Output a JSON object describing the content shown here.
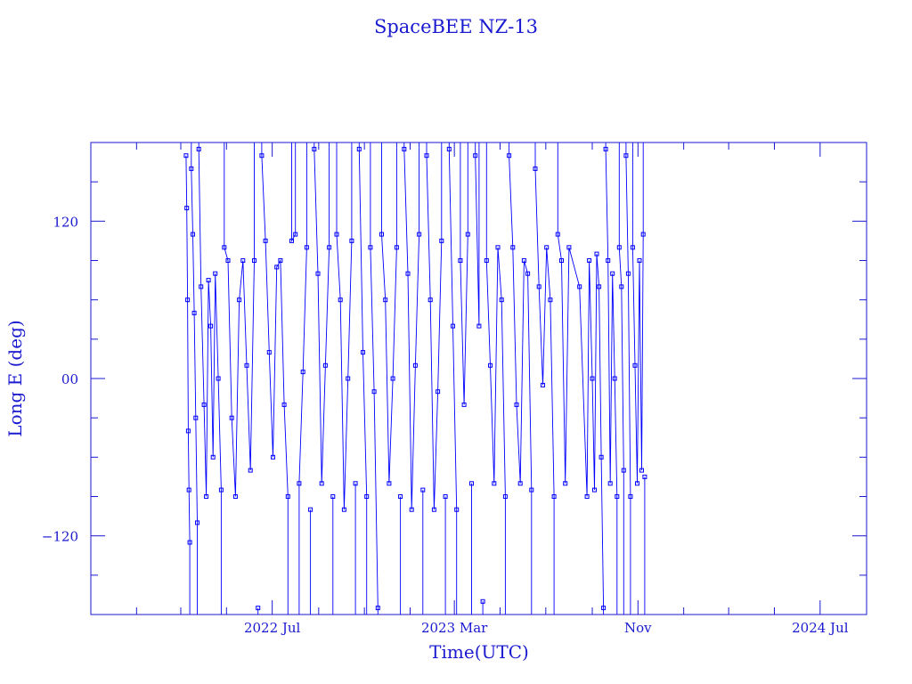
{
  "chart_data": {
    "type": "line",
    "title": "SpaceBEE NZ-13",
    "xlabel": "Time(UTC)",
    "ylabel": "Long E (deg)",
    "x_range": [
      "2021-11-01",
      "2024-09-01"
    ],
    "ylim": [
      -180,
      180
    ],
    "y_ticks": [
      -120,
      0,
      120
    ],
    "y_tick_labels": [
      "−120",
      "00",
      "120"
    ],
    "x_tick_labels": [
      {
        "date": "2022-07-01",
        "label": "2022 Jul"
      },
      {
        "date": "2023-03-01",
        "label": "2023 Mar"
      },
      {
        "date": "2023-11-01",
        "label": "Nov"
      },
      {
        "date": "2024-07-01",
        "label": "2024 Jul"
      }
    ],
    "grid": false,
    "series_color": "#0000ff",
    "axis_color": "#1a1ad0",
    "series": [
      {
        "data_start": "2022-03-08",
        "data_end": "2023-11-10",
        "points": [
          [
            "2022-03-08",
            170
          ],
          [
            "2022-03-09",
            130
          ],
          [
            "2022-03-10",
            60
          ],
          [
            "2022-03-11",
            -40
          ],
          [
            "2022-03-12",
            -85
          ],
          [
            "2022-03-13",
            -125
          ],
          [
            "2022-03-15",
            160
          ],
          [
            "2022-03-17",
            110
          ],
          [
            "2022-03-19",
            50
          ],
          [
            "2022-03-21",
            -30
          ],
          [
            "2022-03-23",
            -110
          ],
          [
            "2022-03-25",
            175
          ],
          [
            "2022-03-28",
            70
          ],
          [
            "2022-04-01",
            -20
          ],
          [
            "2022-04-04",
            -90
          ],
          [
            "2022-04-07",
            75
          ],
          [
            "2022-04-10",
            40
          ],
          [
            "2022-04-13",
            -60
          ],
          [
            "2022-04-16",
            80
          ],
          [
            "2022-04-20",
            0
          ],
          [
            "2022-04-24",
            -85
          ],
          [
            "2022-04-28",
            100
          ],
          [
            "2022-05-03",
            90
          ],
          [
            "2022-05-08",
            -30
          ],
          [
            "2022-05-13",
            -90
          ],
          [
            "2022-05-18",
            60
          ],
          [
            "2022-05-23",
            90
          ],
          [
            "2022-05-28",
            10
          ],
          [
            "2022-06-02",
            -70
          ],
          [
            "2022-06-07",
            90
          ],
          [
            "2022-06-12",
            -175
          ],
          [
            "2022-06-17",
            170
          ],
          [
            "2022-06-22",
            105
          ],
          [
            "2022-06-27",
            20
          ],
          [
            "2022-07-02",
            -60
          ],
          [
            "2022-07-07",
            85
          ],
          [
            "2022-07-12",
            90
          ],
          [
            "2022-07-17",
            -20
          ],
          [
            "2022-07-22",
            -90
          ],
          [
            "2022-07-27",
            105
          ],
          [
            "2022-08-01",
            110
          ],
          [
            "2022-08-06",
            -80
          ],
          [
            "2022-08-11",
            5
          ],
          [
            "2022-08-16",
            100
          ],
          [
            "2022-08-21",
            -100
          ],
          [
            "2022-08-26",
            175
          ],
          [
            "2022-08-31",
            80
          ],
          [
            "2022-09-05",
            -80
          ],
          [
            "2022-09-10",
            10
          ],
          [
            "2022-09-15",
            100
          ],
          [
            "2022-09-20",
            -90
          ],
          [
            "2022-09-25",
            110
          ],
          [
            "2022-09-30",
            60
          ],
          [
            "2022-10-05",
            -100
          ],
          [
            "2022-10-10",
            0
          ],
          [
            "2022-10-15",
            105
          ],
          [
            "2022-10-20",
            -80
          ],
          [
            "2022-10-25",
            175
          ],
          [
            "2022-10-30",
            20
          ],
          [
            "2022-11-04",
            -90
          ],
          [
            "2022-11-09",
            100
          ],
          [
            "2022-11-14",
            -10
          ],
          [
            "2022-11-19",
            -175
          ],
          [
            "2022-11-24",
            110
          ],
          [
            "2022-11-29",
            60
          ],
          [
            "2022-12-04",
            -80
          ],
          [
            "2022-12-09",
            0
          ],
          [
            "2022-12-14",
            100
          ],
          [
            "2022-12-19",
            -90
          ],
          [
            "2022-12-24",
            175
          ],
          [
            "2022-12-29",
            80
          ],
          [
            "2023-01-03",
            -100
          ],
          [
            "2023-01-08",
            10
          ],
          [
            "2023-01-13",
            110
          ],
          [
            "2023-01-18",
            -85
          ],
          [
            "2023-01-23",
            170
          ],
          [
            "2023-01-28",
            60
          ],
          [
            "2023-02-02",
            -100
          ],
          [
            "2023-02-07",
            -10
          ],
          [
            "2023-02-12",
            105
          ],
          [
            "2023-02-17",
            -90
          ],
          [
            "2023-02-22",
            175
          ],
          [
            "2023-02-27",
            40
          ],
          [
            "2023-03-04",
            -100
          ],
          [
            "2023-03-09",
            90
          ],
          [
            "2023-03-14",
            -20
          ],
          [
            "2023-03-19",
            110
          ],
          [
            "2023-03-24",
            -80
          ],
          [
            "2023-03-29",
            170
          ],
          [
            "2023-04-03",
            40
          ],
          [
            "2023-04-08",
            -170
          ],
          [
            "2023-04-13",
            90
          ],
          [
            "2023-04-18",
            10
          ],
          [
            "2023-04-23",
            -80
          ],
          [
            "2023-04-28",
            100
          ],
          [
            "2023-05-03",
            60
          ],
          [
            "2023-05-08",
            -90
          ],
          [
            "2023-05-13",
            170
          ],
          [
            "2023-05-18",
            100
          ],
          [
            "2023-05-23",
            -20
          ],
          [
            "2023-05-28",
            -80
          ],
          [
            "2023-06-02",
            90
          ],
          [
            "2023-06-07",
            80
          ],
          [
            "2023-06-12",
            -85
          ],
          [
            "2023-06-17",
            160
          ],
          [
            "2023-06-22",
            70
          ],
          [
            "2023-06-27",
            -5
          ],
          [
            "2023-07-02",
            100
          ],
          [
            "2023-07-07",
            60
          ],
          [
            "2023-07-12",
            -90
          ],
          [
            "2023-07-17",
            110
          ],
          [
            "2023-07-22",
            90
          ],
          [
            "2023-07-27",
            -80
          ],
          [
            "2023-08-01",
            100
          ],
          [
            "2023-08-15",
            70
          ],
          [
            "2023-08-25",
            -90
          ],
          [
            "2023-08-28",
            90
          ],
          [
            "2023-09-01",
            0
          ],
          [
            "2023-09-04",
            -85
          ],
          [
            "2023-09-07",
            95
          ],
          [
            "2023-09-10",
            70
          ],
          [
            "2023-09-13",
            -60
          ],
          [
            "2023-09-16",
            -175
          ],
          [
            "2023-09-19",
            175
          ],
          [
            "2023-09-22",
            90
          ],
          [
            "2023-09-25",
            -80
          ],
          [
            "2023-09-28",
            80
          ],
          [
            "2023-10-01",
            0
          ],
          [
            "2023-10-04",
            -90
          ],
          [
            "2023-10-07",
            100
          ],
          [
            "2023-10-10",
            70
          ],
          [
            "2023-10-13",
            -70
          ],
          [
            "2023-10-16",
            170
          ],
          [
            "2023-10-19",
            80
          ],
          [
            "2023-10-22",
            -90
          ],
          [
            "2023-10-25",
            100
          ],
          [
            "2023-10-28",
            10
          ],
          [
            "2023-10-31",
            -80
          ],
          [
            "2023-11-03",
            90
          ],
          [
            "2023-11-06",
            -70
          ],
          [
            "2023-11-08",
            110
          ],
          [
            "2023-11-10",
            -75
          ]
        ]
      }
    ]
  }
}
